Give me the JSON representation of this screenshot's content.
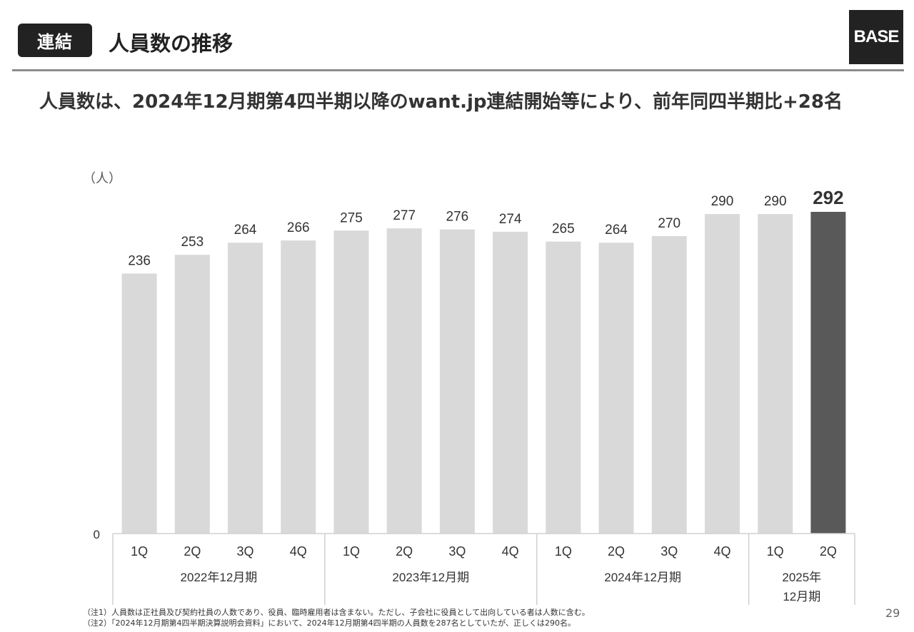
{
  "header": {
    "badge": "連結",
    "title": "人員数の推移",
    "logo": "BASE"
  },
  "subtitle": "人員数は、2024年12月期第4四半期以降のwant.jp連結開始等により、前年同四半期比+28名",
  "chart_data": {
    "type": "bar",
    "unit_label": "（人）",
    "categories": [
      "1Q",
      "2Q",
      "3Q",
      "4Q",
      "1Q",
      "2Q",
      "3Q",
      "4Q",
      "1Q",
      "2Q",
      "3Q",
      "4Q",
      "1Q",
      "2Q"
    ],
    "groups": [
      {
        "label": "2022年12月期",
        "count": 4
      },
      {
        "label": "2023年12月期",
        "count": 4
      },
      {
        "label": "2024年12月期",
        "count": 4
      },
      {
        "label": "2025年\n12月期",
        "count": 2
      }
    ],
    "values": [
      236,
      253,
      264,
      266,
      275,
      277,
      276,
      274,
      265,
      264,
      270,
      290,
      290,
      292
    ],
    "highlight_index": 13,
    "ylim": [
      0,
      292
    ],
    "zero_label": "0",
    "grid": false,
    "colors": {
      "bar": "#d9d9d9",
      "highlight": "#595959",
      "axis": "#d0d0d0"
    }
  },
  "footnotes": [
    "（注1）人員数は正社員及び契約社員の人数であり、役員、臨時雇用者は含まない。ただし、子会社に役員として出向している者は人数に含む。",
    "（注2）「2024年12月期第4四半期決算説明会資料」において、2024年12月期第4四半期の人員数を287名としていたが、正しくは290名。"
  ],
  "page_number": "29"
}
